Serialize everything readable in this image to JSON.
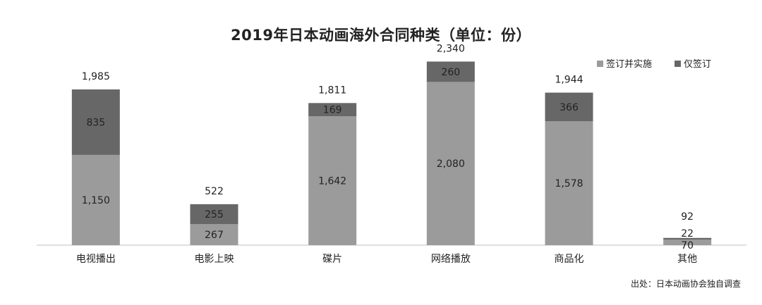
{
  "chart_data": {
    "type": "bar",
    "stacked": true,
    "title": "2019年日本动画海外合同种类（单位：份）",
    "xlabel": "",
    "ylabel": "",
    "categories": [
      "电视播出",
      "电影上映",
      "碟片",
      "网络播放",
      "商品化",
      "其他"
    ],
    "series": [
      {
        "name": "签订并实施",
        "color": "#9b9b9b",
        "values": [
          1150,
          267,
          1642,
          2080,
          1578,
          70
        ]
      },
      {
        "name": "仅签订",
        "color": "#676767",
        "values": [
          835,
          255,
          169,
          260,
          366,
          22
        ]
      }
    ],
    "totals": [
      1985,
      522,
      1811,
      2340,
      1944,
      92
    ],
    "total_labels": [
      "1,985",
      "522",
      "1,811",
      "2,340",
      "1,944",
      "92"
    ],
    "segment_labels": [
      [
        "1,150",
        "267",
        "1,642",
        "2,080",
        "1,578",
        "70"
      ],
      [
        "835",
        "255",
        "169",
        "260",
        "366",
        "22"
      ]
    ],
    "ylim": [
      0,
      2550
    ],
    "grid": false,
    "legend": "top-right",
    "source": "出处：日本动画协会独自调查"
  }
}
